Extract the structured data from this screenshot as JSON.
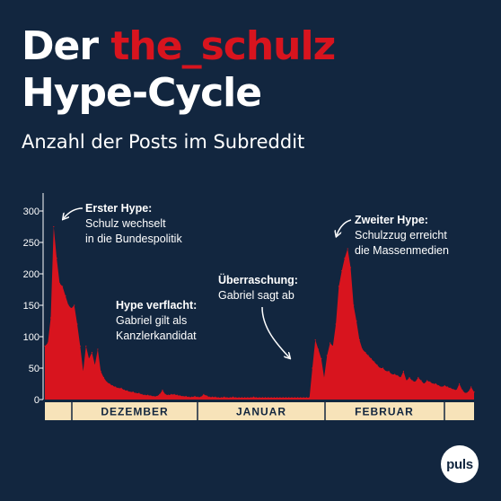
{
  "title": {
    "prefix": "Der ",
    "accent": "the_schulz",
    "line2": "Hype-Cycle"
  },
  "subtitle": "Anzahl der Posts im Subreddit",
  "logo": "puls",
  "colors": {
    "background": "#12263f",
    "series": "#d8141e",
    "accent": "#d8141e",
    "month_band": "#f7e3b9",
    "text": "#ffffff"
  },
  "chart_data": {
    "type": "area",
    "title": "",
    "xlabel": "",
    "ylabel": "",
    "ylim": [
      0,
      310
    ],
    "yticks": [
      0,
      50,
      100,
      150,
      200,
      250,
      300
    ],
    "grid": false,
    "legend": "none",
    "months": [
      "DEZEMBER",
      "JANUAR",
      "FEBRUAR"
    ],
    "series": [
      {
        "values": [
          85,
          90,
          130,
          275,
          225,
          185,
          180,
          165,
          150,
          145,
          150,
          120,
          85,
          45,
          85,
          65,
          75,
          55,
          80,
          45,
          35,
          28,
          25,
          22,
          20,
          18,
          18,
          15,
          14,
          12,
          12,
          10,
          10,
          8,
          7,
          7,
          6,
          5,
          5,
          8,
          15,
          8,
          7,
          8,
          8,
          7,
          6,
          5,
          5,
          4,
          4,
          5,
          4,
          4,
          8,
          6,
          4,
          4,
          4,
          3,
          3,
          4,
          3,
          3,
          4,
          3,
          3,
          3,
          3,
          3,
          3,
          4,
          3,
          3,
          3,
          3,
          3,
          3,
          3,
          3,
          3,
          3,
          3,
          3,
          3,
          3,
          3,
          3,
          3,
          3,
          3,
          50,
          95,
          80,
          65,
          35,
          70,
          90,
          85,
          120,
          180,
          205,
          225,
          240,
          210,
          150,
          125,
          95,
          80,
          75,
          70,
          65,
          60,
          55,
          50,
          50,
          45,
          45,
          40,
          40,
          38,
          35,
          45,
          30,
          35,
          30,
          28,
          35,
          30,
          25,
          30,
          28,
          25,
          25,
          22,
          20,
          22,
          20,
          18,
          16,
          15,
          25,
          15,
          10,
          12,
          20,
          12
        ]
      }
    ],
    "annotations": [
      {
        "title": "Erster Hype:",
        "text": [
          "Schulz wechselt",
          "in die Bundespolitik"
        ]
      },
      {
        "title": "Hype verflacht:",
        "text": [
          "Gabriel gilt als",
          "Kanzlerkandidat"
        ]
      },
      {
        "title": "Überraschung:",
        "text": [
          "Gabriel sagt ab"
        ]
      },
      {
        "title": "Zweiter Hype:",
        "text": [
          "Schulzzug erreicht",
          "die Massenmedien"
        ]
      }
    ]
  }
}
